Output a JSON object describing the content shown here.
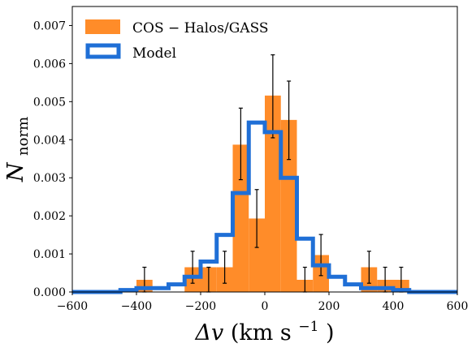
{
  "chart_data": {
    "type": "bar",
    "xlabel_symbol": "Δv",
    "xlabel_units": "(km s",
    "xlabel_exp": "−1",
    "xlabel_close": ")",
    "ylabel_main": "N",
    "ylabel_sub": "norm",
    "xlim": [
      -600,
      600
    ],
    "ylim": [
      0,
      0.0075
    ],
    "xticks": [
      -600,
      -400,
      -200,
      0,
      200,
      400,
      600
    ],
    "xtick_labels": [
      "−600",
      "−400",
      "−200",
      "0",
      "200",
      "400",
      "600"
    ],
    "yticks": [
      0,
      0.001,
      0.002,
      0.003,
      0.004,
      0.005,
      0.006,
      0.007
    ],
    "ytick_labels": [
      "0.000",
      "0.001",
      "0.002",
      "0.003",
      "0.004",
      "0.005",
      "0.006",
      "0.007"
    ],
    "legend_position": "top-left",
    "series": [
      {
        "name": "COS − Halos/GASS",
        "kind": "filled-histogram",
        "color": "#ff8c29",
        "bin_width": 50,
        "bin_starts": [
          -400,
          -350,
          -250,
          -200,
          -150,
          -100,
          -50,
          0,
          50,
          100,
          150,
          300,
          350,
          400
        ],
        "values": [
          0.00032,
          0.0,
          0.00065,
          0.00065,
          0.00065,
          0.00387,
          0.00193,
          0.00516,
          0.00452,
          0.00032,
          0.00097,
          0.00065,
          0.00032,
          0.00032
        ],
        "errors": [
          {
            "x": -375,
            "low": 0.0,
            "high": 0.00065
          },
          {
            "x": -225,
            "low": 0.00023,
            "high": 0.00107
          },
          {
            "x": -175,
            "low": 0.0,
            "high": 0.00065
          },
          {
            "x": -125,
            "low": 0.00023,
            "high": 0.00107
          },
          {
            "x": -75,
            "low": 0.00295,
            "high": 0.00483
          },
          {
            "x": -25,
            "low": 0.00117,
            "high": 0.00269
          },
          {
            "x": 25,
            "low": 0.00405,
            "high": 0.00623
          },
          {
            "x": 75,
            "low": 0.00348,
            "high": 0.00554
          },
          {
            "x": 125,
            "low": 0.0,
            "high": 0.00065
          },
          {
            "x": 175,
            "low": 0.00043,
            "high": 0.00151
          },
          {
            "x": 325,
            "low": 0.00023,
            "high": 0.00107
          },
          {
            "x": 375,
            "low": 0.0,
            "high": 0.00065
          },
          {
            "x": 425,
            "low": 0.0,
            "high": 0.00065
          }
        ]
      },
      {
        "name": "Model",
        "kind": "step-histogram",
        "color": "#1f6fd6",
        "bin_edges": [
          -600,
          -450,
          -400,
          -350,
          -300,
          -250,
          -200,
          -150,
          -100,
          -50,
          0,
          50,
          100,
          150,
          200,
          250,
          300,
          350,
          400,
          450,
          500,
          600
        ],
        "values": [
          0.0,
          5e-05,
          0.0001,
          0.0001,
          0.0002,
          0.0004,
          0.0008,
          0.0015,
          0.0026,
          0.00445,
          0.0042,
          0.003,
          0.0014,
          0.0007,
          0.0004,
          0.0002,
          0.0001,
          0.0001,
          5e-05,
          0.0,
          0.0
        ]
      }
    ]
  }
}
